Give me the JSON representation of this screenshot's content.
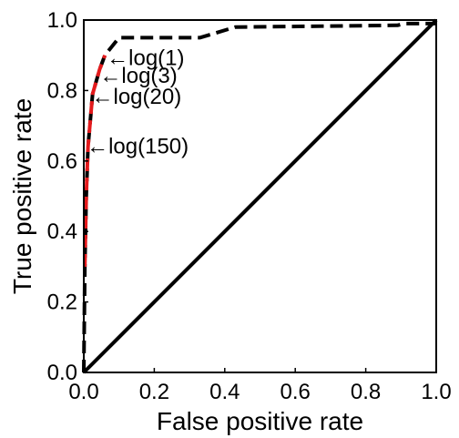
{
  "chart_data": {
    "type": "line",
    "title": "",
    "xlabel": "False positive rate",
    "ylabel": "True positive rate",
    "xlim": [
      0,
      1
    ],
    "ylim": [
      0,
      1
    ],
    "xticks": [
      "0.0",
      "0.2",
      "0.4",
      "0.6",
      "0.8",
      "1.0"
    ],
    "yticks": [
      "0.0",
      "0.2",
      "0.4",
      "0.6",
      "0.8",
      "1.0"
    ],
    "grid": false,
    "series": [
      {
        "style": "solid",
        "color": "#000000",
        "x": [
          0,
          1
        ],
        "y": [
          0,
          1
        ]
      },
      {
        "style": "dashed",
        "color": "#000000",
        "x": [
          0,
          0.003,
          0.007,
          0.012,
          0.025,
          0.045,
          0.06,
          0.1,
          0.33,
          0.43,
          0.89,
          0.91,
          1.0
        ],
        "y": [
          0,
          0.3,
          0.5,
          0.64,
          0.79,
          0.86,
          0.9,
          0.95,
          0.95,
          0.98,
          0.985,
          0.99,
          0.99
        ]
      },
      {
        "style": "dashed",
        "color": "#e41a1c",
        "x": [
          0.003,
          0.007,
          0.012,
          0.025,
          0.045,
          0.06
        ],
        "y": [
          0.3,
          0.5,
          0.64,
          0.79,
          0.86,
          0.9
        ]
      }
    ],
    "annotations": [
      {
        "text": "←log(1)",
        "x": 0.065,
        "y": 0.895
      },
      {
        "text": "←log(3)",
        "x": 0.045,
        "y": 0.845
      },
      {
        "text": "←log(20)",
        "x": 0.022,
        "y": 0.785
      },
      {
        "text": "←log(150)",
        "x": 0.008,
        "y": 0.645
      }
    ]
  }
}
